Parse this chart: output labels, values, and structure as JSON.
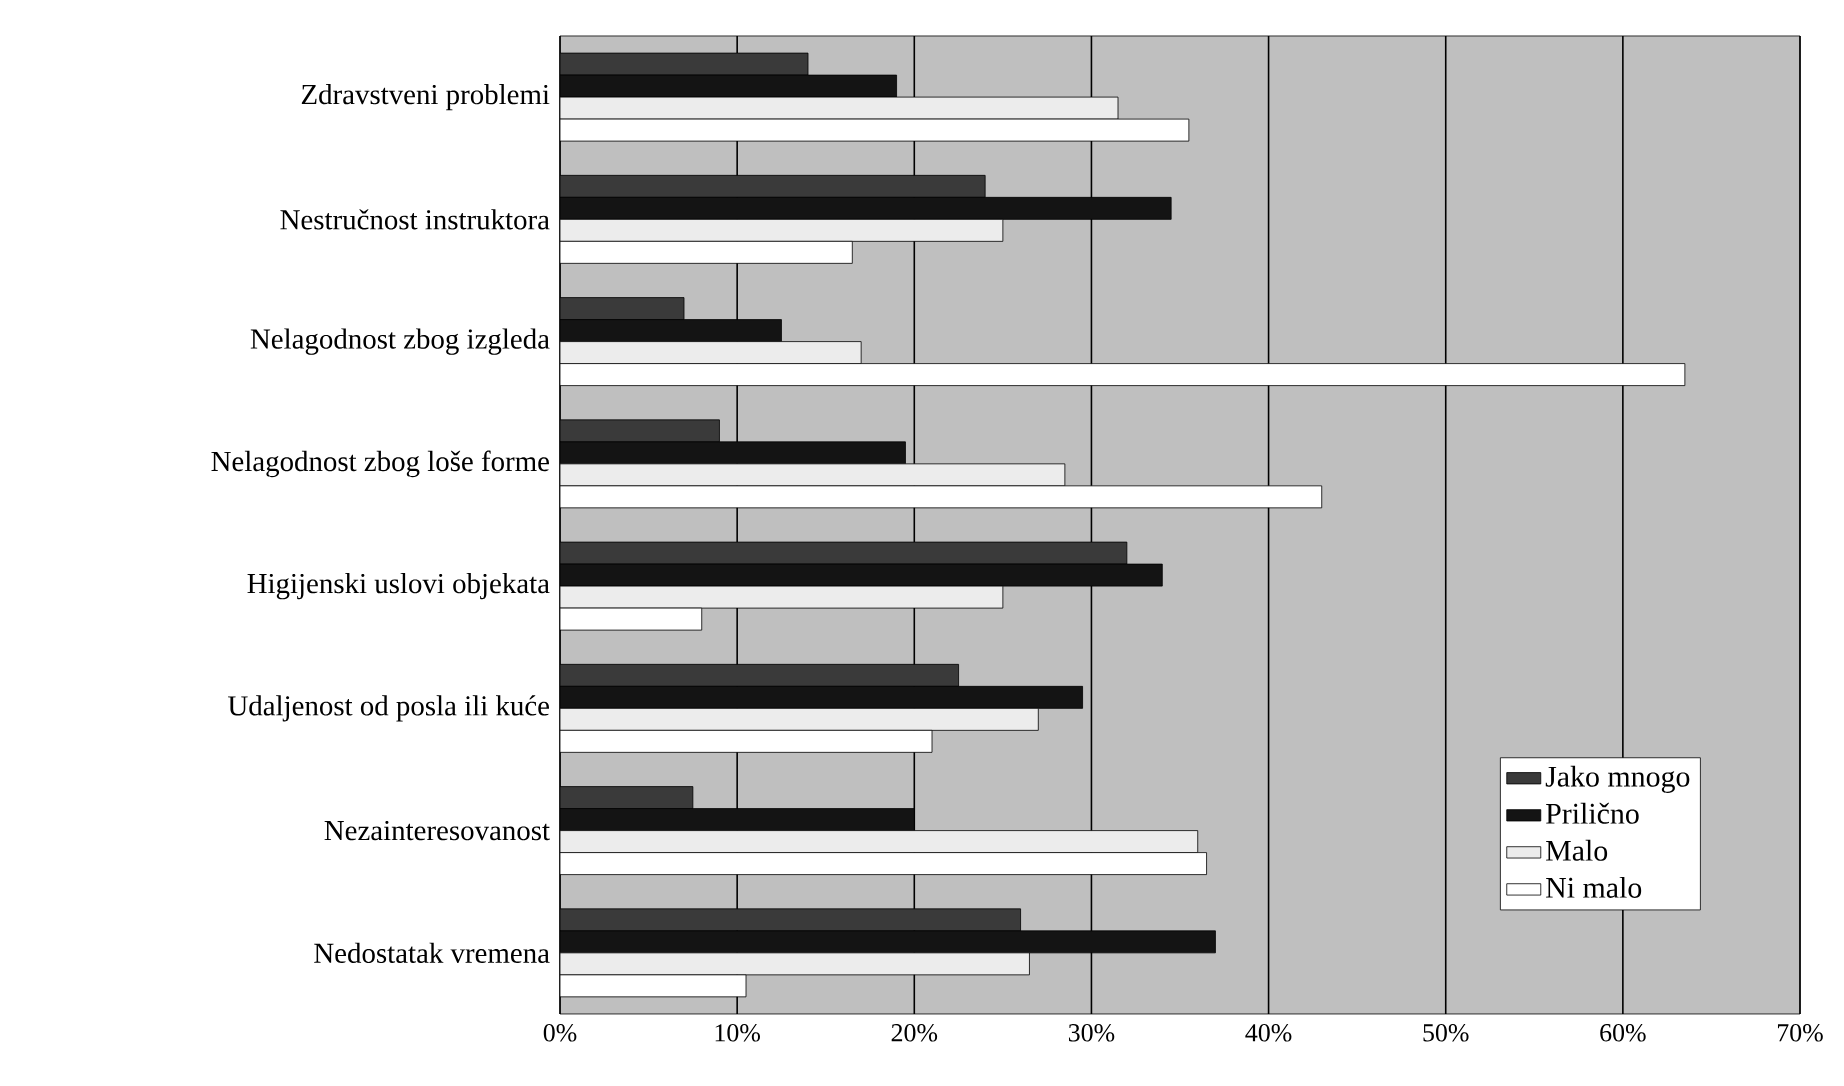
{
  "chart_data": {
    "type": "bar",
    "orientation": "horizontal",
    "categories": [
      "Zdravstveni problemi",
      "Nestručnost instruktora",
      "Nelagodnost zbog izgleda",
      "Nelagodnost zbog loše forme",
      "Higijenski uslovi objekata",
      "Udaljenost od posla ili kuće",
      "Nezainteresovanost",
      "Nedostatak vremena"
    ],
    "series": [
      {
        "name": "Jako mnogo",
        "color": "#3a3a3a",
        "values": [
          14,
          24,
          7,
          9,
          32,
          22.5,
          7.5,
          26
        ]
      },
      {
        "name": "Prilično",
        "color": "#141414",
        "values": [
          19,
          34.5,
          12.5,
          19.5,
          34,
          29.5,
          20,
          37
        ]
      },
      {
        "name": "Malo",
        "color": "#ececec",
        "values": [
          31.5,
          25,
          17,
          28.5,
          25,
          27,
          36,
          26.5
        ]
      },
      {
        "name": "Ni malo",
        "color": "#ffffff",
        "values": [
          35.5,
          16.5,
          63.5,
          43,
          8,
          21,
          36.5,
          10.5
        ]
      }
    ],
    "xlim": [
      0,
      70
    ],
    "xticks": [
      {
        "value": 0,
        "label": "0%"
      },
      {
        "value": 10,
        "label": "10%"
      },
      {
        "value": 20,
        "label": "20%"
      },
      {
        "value": 30,
        "label": "30%"
      },
      {
        "value": 40,
        "label": "40%"
      },
      {
        "value": 50,
        "label": "50%"
      },
      {
        "value": 60,
        "label": "60%"
      },
      {
        "value": 70,
        "label": "70%"
      }
    ],
    "grid": "x",
    "legend": "bottom right"
  }
}
